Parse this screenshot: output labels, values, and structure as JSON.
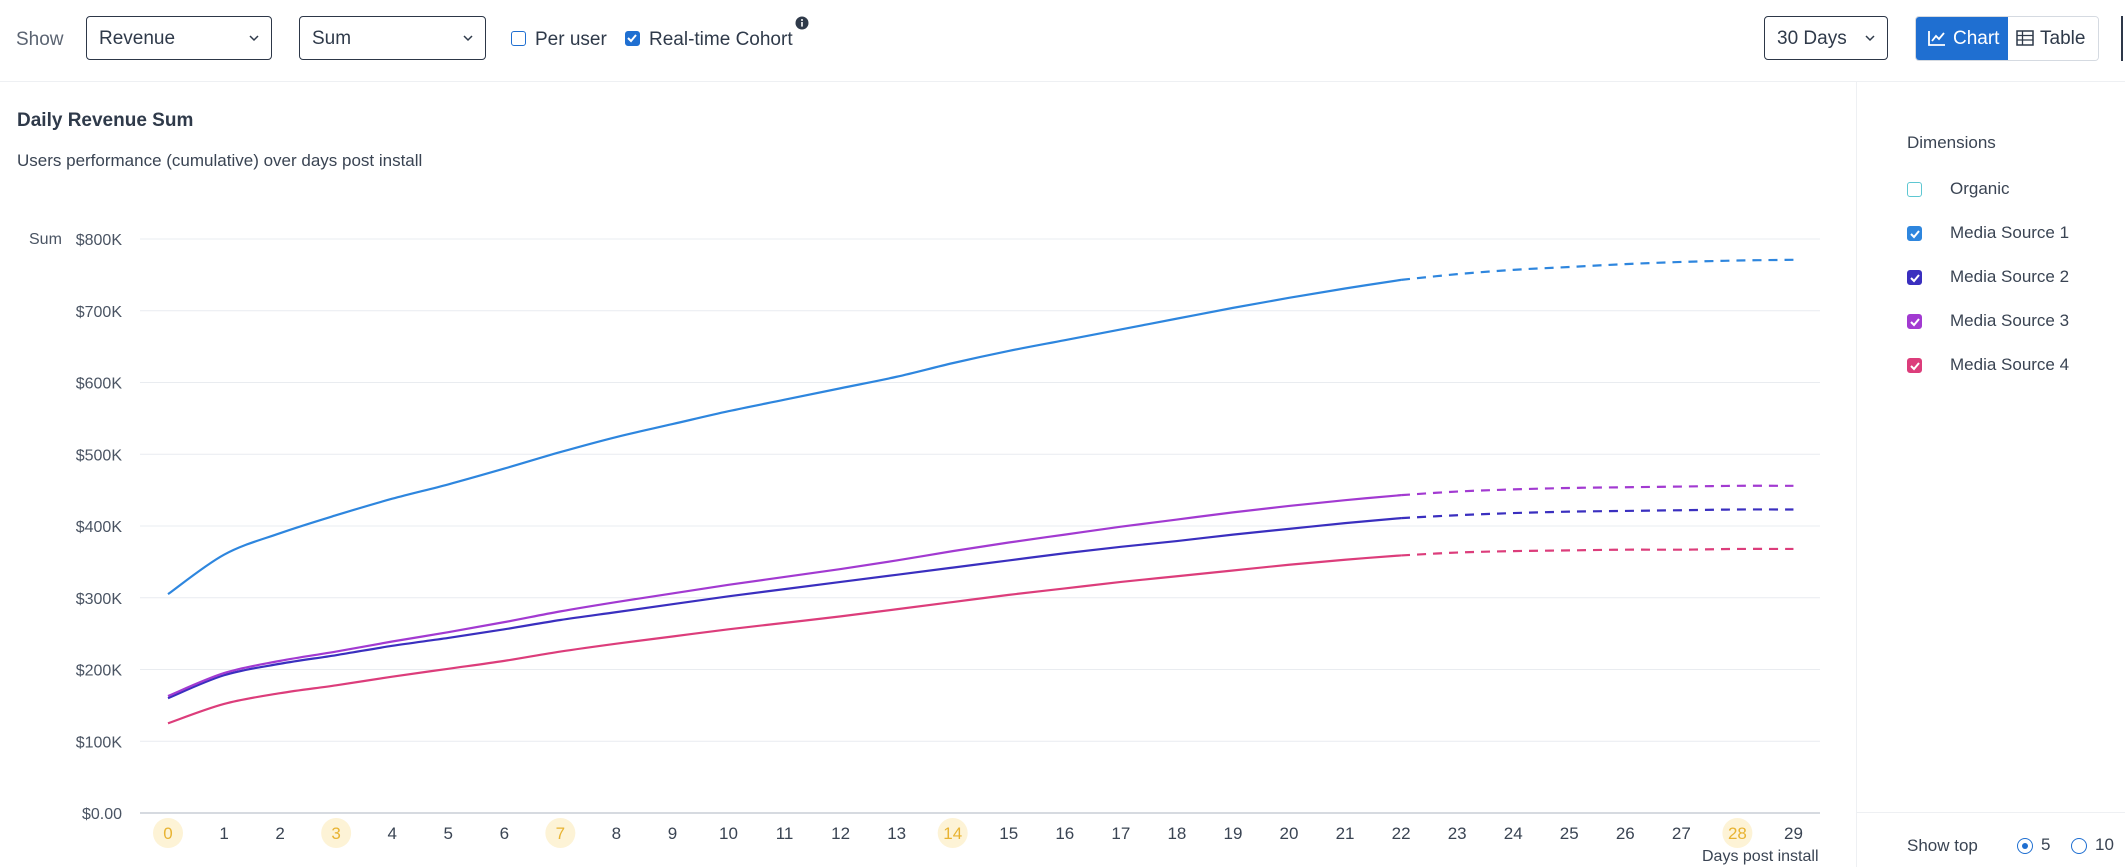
{
  "toolbar": {
    "show_label": "Show",
    "metric_select": "Revenue",
    "aggregation_select": "Sum",
    "per_user_label": "Per user",
    "per_user_checked": false,
    "realtime_label": "Real-time Cohort",
    "realtime_checked": true,
    "range_select": "30 Days",
    "chart_button": "Chart",
    "table_button": "Table",
    "active_view": "Chart"
  },
  "chart_header": {
    "title": "Daily Revenue Sum",
    "subtitle": "Users performance (cumulative) over days post install"
  },
  "dimensions": {
    "title": "Dimensions",
    "items": [
      {
        "label": "Organic",
        "checked": false,
        "color": "#5ec7d2"
      },
      {
        "label": "Media Source 1",
        "checked": true,
        "color": "#2e86de"
      },
      {
        "label": "Media Source 2",
        "checked": true,
        "color": "#3a2fbf"
      },
      {
        "label": "Media Source 3",
        "checked": true,
        "color": "#a23ad1"
      },
      {
        "label": "Media Source 4",
        "checked": true,
        "color": "#dc3d7b"
      }
    ]
  },
  "show_top": {
    "label": "Show top",
    "options": [
      "5",
      "10"
    ],
    "selected": "5"
  },
  "chart_data": {
    "type": "line",
    "title": "Daily Revenue Sum",
    "subtitle": "Users performance (cumulative) over days post install",
    "ylabel": "Sum",
    "xlabel": "Days post install",
    "x": [
      0,
      1,
      2,
      3,
      4,
      5,
      6,
      7,
      8,
      9,
      10,
      11,
      12,
      13,
      14,
      15,
      16,
      17,
      18,
      19,
      20,
      21,
      22,
      23,
      24,
      25,
      26,
      27,
      28,
      29
    ],
    "highlighted_x": [
      0,
      3,
      7,
      14,
      28
    ],
    "ylim": [
      0,
      800000
    ],
    "yticks": [
      "$0.00",
      "$100K",
      "$200K",
      "$300K",
      "$400K",
      "$500K",
      "$600K",
      "$700K",
      "$800K"
    ],
    "actual_until_x": 22,
    "projection_style": "dashed",
    "grid": true,
    "series": [
      {
        "name": "Media Source 1",
        "color": "#2e86de",
        "values": [
          305000,
          360000,
          390000,
          415000,
          438000,
          458000,
          480000,
          503000,
          524000,
          542000,
          560000,
          576000,
          592000,
          608000,
          627000,
          644000,
          659000,
          674000,
          689000,
          704000,
          718000,
          731000,
          743000,
          751000,
          757000,
          761000,
          765000,
          768000,
          770000,
          771000
        ]
      },
      {
        "name": "Media Source 2",
        "color": "#3a2fbf",
        "values": [
          160000,
          192000,
          208000,
          220000,
          233000,
          244000,
          256000,
          269000,
          280000,
          291000,
          302000,
          312000,
          322000,
          332000,
          342000,
          352000,
          362000,
          371000,
          379000,
          388000,
          396000,
          404000,
          411000,
          415000,
          418000,
          420000,
          421000,
          422000,
          423000,
          423000
        ]
      },
      {
        "name": "Media Source 3",
        "color": "#a23ad1",
        "values": [
          163000,
          195000,
          212000,
          225000,
          239000,
          252000,
          266000,
          281000,
          294000,
          306000,
          318000,
          329000,
          340000,
          352000,
          365000,
          377000,
          388000,
          399000,
          409000,
          419000,
          428000,
          436000,
          443000,
          448000,
          451000,
          453000,
          454000,
          455000,
          456000,
          456000
        ]
      },
      {
        "name": "Media Source 4",
        "color": "#dc3d7b",
        "values": [
          125000,
          152000,
          167000,
          178000,
          190000,
          201000,
          212000,
          225000,
          236000,
          246000,
          256000,
          265000,
          274000,
          284000,
          294000,
          304000,
          313000,
          322000,
          330000,
          338000,
          346000,
          353000,
          359000,
          363000,
          365000,
          366000,
          367000,
          367000,
          368000,
          368000
        ]
      }
    ]
  }
}
